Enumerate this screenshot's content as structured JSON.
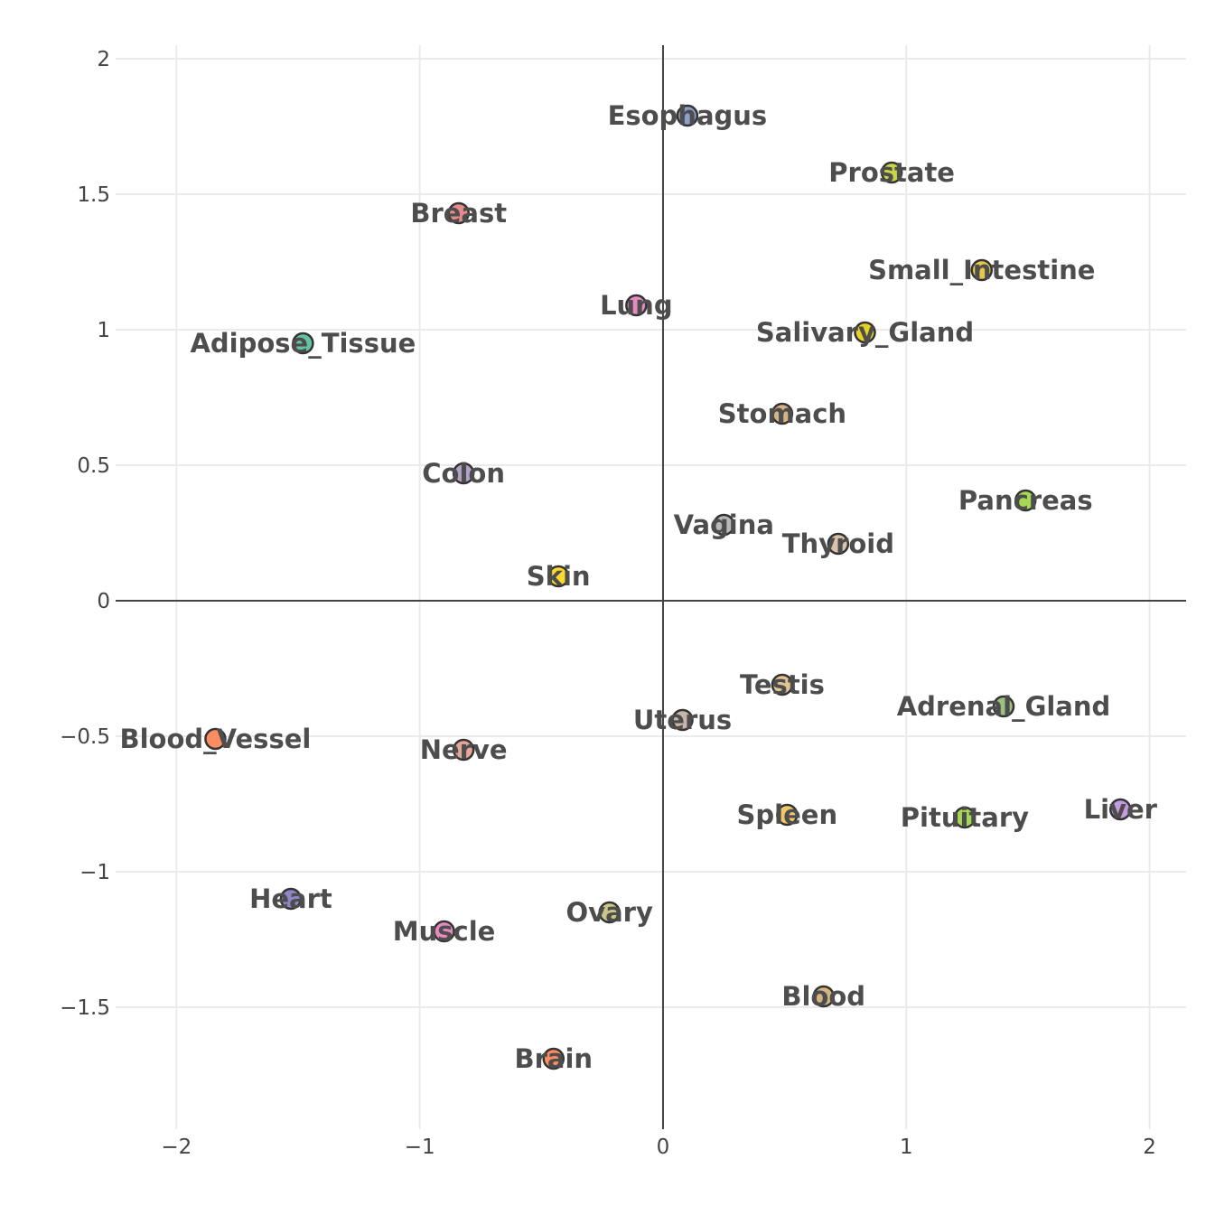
{
  "chart_data": {
    "type": "scatter",
    "title": "",
    "xlabel": "",
    "ylabel": "",
    "xlim": [
      -2.25,
      2.15
    ],
    "ylim": [
      -1.95,
      2.05
    ],
    "grid": true,
    "x_ticks": [
      -2,
      -1,
      0,
      1,
      2
    ],
    "x_tick_labels": [
      "−2",
      "−1",
      "0",
      "1",
      "2"
    ],
    "y_ticks": [
      2,
      1.5,
      1,
      0.5,
      0,
      -0.5,
      -1,
      -1.5
    ],
    "y_tick_labels": [
      "2",
      "1.5",
      "1",
      "0.5",
      "0",
      "−0.5",
      "−1",
      "−1.5"
    ],
    "points": [
      {
        "label": "Esophagus",
        "x": 0.1,
        "y": 1.79,
        "color": "#8da0cb"
      },
      {
        "label": "Prostate",
        "x": 0.94,
        "y": 1.58,
        "color": "#c8d845"
      },
      {
        "label": "Breast",
        "x": -0.84,
        "y": 1.43,
        "color": "#e78a8a"
      },
      {
        "label": "Small_Intestine",
        "x": 1.31,
        "y": 1.22,
        "color": "#e5c84a"
      },
      {
        "label": "Lung",
        "x": -0.11,
        "y": 1.09,
        "color": "#e78ac3"
      },
      {
        "label": "Salivary_Gland",
        "x": 0.83,
        "y": 0.99,
        "color": "#e6d224"
      },
      {
        "label": "Adipose_Tissue",
        "x": -1.48,
        "y": 0.95,
        "color": "#66c2a5"
      },
      {
        "label": "Stomach",
        "x": 0.49,
        "y": 0.69,
        "color": "#d4b483"
      },
      {
        "label": "Colon",
        "x": -0.82,
        "y": 0.47,
        "color": "#b3a2c7"
      },
      {
        "label": "Pancreas",
        "x": 1.49,
        "y": 0.37,
        "color": "#a6d854"
      },
      {
        "label": "Vagina",
        "x": 0.25,
        "y": 0.28,
        "color": "#b8b8b8"
      },
      {
        "label": "Thyroid",
        "x": 0.72,
        "y": 0.21,
        "color": "#d9c2a8"
      },
      {
        "label": "Skin",
        "x": -0.43,
        "y": 0.09,
        "color": "#ffd92f"
      },
      {
        "label": "Testis",
        "x": 0.49,
        "y": -0.31,
        "color": "#e5c494"
      },
      {
        "label": "Adrenal_Gland",
        "x": 1.4,
        "y": -0.39,
        "color": "#9fbf7f"
      },
      {
        "label": "Uterus",
        "x": 0.08,
        "y": -0.44,
        "color": "#c8b4a8"
      },
      {
        "label": "Blood_Vessel",
        "x": -1.84,
        "y": -0.51,
        "color": "#fc8d62"
      },
      {
        "label": "Nerve",
        "x": -0.82,
        "y": -0.55,
        "color": "#e5a898"
      },
      {
        "label": "Spleen",
        "x": 0.51,
        "y": -0.79,
        "color": "#f0c86a"
      },
      {
        "label": "Pituitary",
        "x": 1.24,
        "y": -0.8,
        "color": "#a6d854"
      },
      {
        "label": "Liver",
        "x": 1.88,
        "y": -0.77,
        "color": "#c49ae0"
      },
      {
        "label": "Heart",
        "x": -1.53,
        "y": -1.1,
        "color": "#8d86c9"
      },
      {
        "label": "Ovary",
        "x": -0.22,
        "y": -1.15,
        "color": "#c7c78a"
      },
      {
        "label": "Muscle",
        "x": -0.9,
        "y": -1.22,
        "color": "#e78ac3"
      },
      {
        "label": "Blood",
        "x": 0.66,
        "y": -1.46,
        "color": "#d4b483"
      },
      {
        "label": "Brain",
        "x": -0.45,
        "y": -1.69,
        "color": "#fc8d62"
      }
    ]
  }
}
